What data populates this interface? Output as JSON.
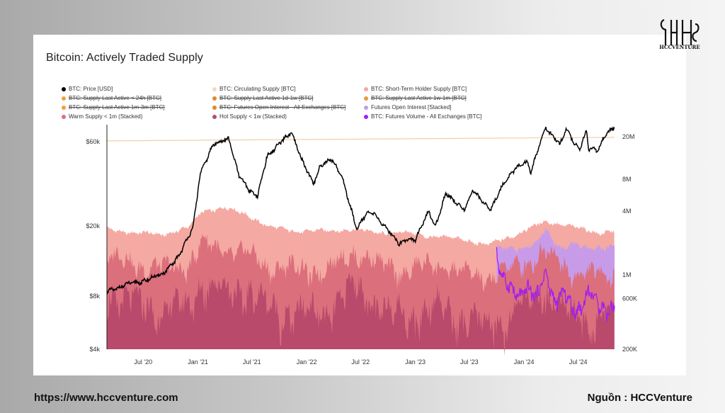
{
  "footer": {
    "url": "https://www.hccventure.com",
    "source": "Nguồn : HCCVenture"
  },
  "logo": {
    "text": "HCCVENTURE"
  },
  "colors": {
    "price": "#000000",
    "circulating": "#f7d9b8",
    "short_term": "#f4a9a2",
    "warm": "#dc6f7c",
    "hot": "#b94a6c",
    "futures_oi": "#c79be8",
    "futures_volume": "#a020f0",
    "struck_dot": "#f0a040"
  },
  "chart_data": {
    "type": "area",
    "title": "Bitcoin: Actively Traded Supply",
    "legend": [
      {
        "label": "BTC: Price [USD]",
        "color": "#000000",
        "struck": false
      },
      {
        "label": "BTC: Circulating Supply [BTC]",
        "color": "#f7d9b8",
        "struck": false
      },
      {
        "label": "BTC: Short-Term Holder Supply [BTC]",
        "color": "#f4a9a2",
        "struck": false
      },
      {
        "label": "BTC: Supply Last Active < 24h [BTC]",
        "color": "#f0a040",
        "struck": true
      },
      {
        "label": "BTC: Supply Last Active 1d-1w [BTC]",
        "color": "#e08a2a",
        "struck": true
      },
      {
        "label": "BTC: Supply Last Active 1w-1m [BTC]",
        "color": "#e69a3c",
        "struck": true
      },
      {
        "label": "BTC: Supply Last Active 1m-3m [BTC]",
        "color": "#f0a040",
        "struck": true
      },
      {
        "label": "BTC: Futures Open Interest - All Exchanges [BTC]",
        "color": "#e08a2a",
        "struck": true
      },
      {
        "label": "Futures Open Interest [Stacked]",
        "color": "#c79be8",
        "struck": false
      },
      {
        "label": "Warm Supply < 1m (Stacked)",
        "color": "#dc6f7c",
        "struck": false
      },
      {
        "label": "Hot Supply < 1w (Stacked)",
        "color": "#b94a6c",
        "struck": false
      },
      {
        "label": "BTC: Futures Volume - All Exchanges [BTC]",
        "color": "#a020f0",
        "struck": false
      }
    ],
    "x_ticks": [
      "Jul '20",
      "Jan '21",
      "Jul '21",
      "Jan '22",
      "Jul '22",
      "Jan '23",
      "Jul '23",
      "Jan '24",
      "Jul '24"
    ],
    "x_range": [
      "2020-03-01",
      "2024-10-31"
    ],
    "y_left": {
      "scale": "log",
      "ticks": [
        "$4k",
        "$8k",
        "$20k",
        "$60k"
      ],
      "tick_values": [
        4000,
        8000,
        20000,
        60000
      ],
      "range": [
        4000,
        75000
      ]
    },
    "y_right": {
      "scale": "log",
      "ticks": [
        "200K",
        "600K",
        "1M",
        "4M",
        "8M",
        "20M"
      ],
      "tick_values": [
        200000,
        600000,
        1000000,
        4000000,
        8000000,
        20000000
      ],
      "range": [
        200000,
        26000000
      ]
    },
    "series": [
      {
        "name": "BTC: Price [USD]",
        "axis": "left",
        "x": [
          "2020-03-01",
          "2020-06-01",
          "2020-09-01",
          "2020-11-01",
          "2020-12-15",
          "2021-01-08",
          "2021-02-21",
          "2021-04-14",
          "2021-05-19",
          "2021-06-22",
          "2021-07-20",
          "2021-08-20",
          "2021-09-07",
          "2021-10-20",
          "2021-11-10",
          "2021-12-15",
          "2022-01-24",
          "2022-02-15",
          "2022-03-28",
          "2022-05-01",
          "2022-06-18",
          "2022-07-20",
          "2022-08-15",
          "2022-09-15",
          "2022-11-09",
          "2022-12-01",
          "2023-01-01",
          "2023-02-15",
          "2023-03-10",
          "2023-04-14",
          "2023-06-15",
          "2023-07-13",
          "2023-09-11",
          "2023-10-25",
          "2023-12-08",
          "2024-01-11",
          "2024-01-23",
          "2024-02-28",
          "2024-03-14",
          "2024-05-01",
          "2024-05-21",
          "2024-07-05",
          "2024-07-29",
          "2024-08-05",
          "2024-09-06",
          "2024-09-27",
          "2024-10-31"
        ],
        "values": [
          8600,
          9500,
          10500,
          13800,
          19400,
          40000,
          57000,
          63500,
          38000,
          31700,
          30000,
          49000,
          52000,
          64000,
          68000,
          47000,
          35000,
          44000,
          47000,
          38000,
          19000,
          23500,
          24000,
          20000,
          16000,
          17000,
          16500,
          24500,
          20000,
          30400,
          25000,
          31400,
          25000,
          34500,
          44000,
          46000,
          39500,
          62000,
          73000,
          57000,
          71000,
          54000,
          69000,
          54000,
          54000,
          66000,
          72000
        ]
      },
      {
        "name": "BTC: Circulating Supply [BTC]",
        "axis": "right",
        "x": [
          "2020-03-01",
          "2024-10-31"
        ],
        "values": [
          18300000,
          19770000
        ]
      },
      {
        "name": "BTC: Short-Term Holder Supply [BTC]",
        "axis": "right",
        "x": [
          "2020-03-01",
          "2020-06-01",
          "2020-09-01",
          "2020-12-01",
          "2021-01-15",
          "2021-04-01",
          "2021-06-15",
          "2021-09-01",
          "2021-12-01",
          "2022-03-01",
          "2022-06-01",
          "2022-09-01",
          "2022-12-01",
          "2023-03-01",
          "2023-06-01",
          "2023-09-01",
          "2023-12-01",
          "2024-03-15",
          "2024-06-01",
          "2024-09-01",
          "2024-10-31"
        ],
        "values": [
          2700000,
          2500000,
          2400000,
          2800000,
          4000000,
          4300000,
          3700000,
          2800000,
          2600000,
          2600000,
          2700000,
          2500000,
          2500000,
          2300000,
          2200000,
          1900000,
          2400000,
          3200000,
          2900000,
          2500000,
          2600000
        ]
      },
      {
        "name": "Warm Supply < 1m (Stacked)",
        "axis": "right",
        "x": [
          "2020-03-01",
          "2020-06-01",
          "2020-09-01",
          "2020-12-01",
          "2021-01-15",
          "2021-04-01",
          "2021-06-15",
          "2021-09-01",
          "2021-12-01",
          "2022-03-01",
          "2022-06-15",
          "2022-09-01",
          "2022-12-01",
          "2023-03-15",
          "2023-06-01",
          "2023-09-01",
          "2023-12-01",
          "2024-03-15",
          "2024-06-01",
          "2024-09-01",
          "2024-10-31"
        ],
        "values": [
          1500000,
          1300000,
          1150000,
          1250000,
          2000000,
          1700000,
          1600000,
          1200000,
          1150000,
          1100000,
          1700000,
          1250000,
          1100000,
          1300000,
          1050000,
          950000,
          1200000,
          1700000,
          1100000,
          1000000,
          1050000
        ]
      },
      {
        "name": "Hot Supply < 1w (Stacked)",
        "axis": "right",
        "x": [
          "2020-03-01",
          "2020-06-01",
          "2020-09-01",
          "2020-12-01",
          "2021-01-15",
          "2021-04-01",
          "2021-06-15",
          "2021-09-01",
          "2021-12-01",
          "2022-03-01",
          "2022-06-15",
          "2022-09-01",
          "2022-12-01",
          "2023-03-15",
          "2023-06-01",
          "2023-09-01",
          "2023-12-01",
          "2024-03-15",
          "2024-06-01",
          "2024-09-01",
          "2024-10-31"
        ],
        "values": [
          700000,
          550000,
          480000,
          520000,
          900000,
          700000,
          750000,
          480000,
          450000,
          440000,
          800000,
          500000,
          420000,
          520000,
          400000,
          330000,
          450000,
          750000,
          420000,
          380000,
          400000
        ]
      },
      {
        "name": "Futures Open Interest [Stacked]",
        "axis": "right",
        "x": [
          "2023-10-01",
          "2023-12-01",
          "2024-02-01",
          "2024-03-15",
          "2024-05-01",
          "2024-06-01",
          "2024-08-01",
          "2024-10-31"
        ],
        "values": [
          1750000,
          1800000,
          1900000,
          2600000,
          1800000,
          2000000,
          1750000,
          1900000
        ]
      },
      {
        "name": "BTC: Futures Volume - All Exchanges [BTC]",
        "axis": "right",
        "x": [
          "2023-10-01",
          "2023-10-20",
          "2023-11-10",
          "2023-12-10",
          "2024-01-11",
          "2024-02-10",
          "2024-03-15",
          "2024-04-15",
          "2024-05-15",
          "2024-06-15",
          "2024-07-15",
          "2024-08-05",
          "2024-09-01",
          "2024-10-01",
          "2024-10-31"
        ],
        "values": [
          1700000,
          900000,
          750000,
          650000,
          800000,
          560000,
          1100000,
          560000,
          650000,
          460000,
          560000,
          700000,
          520000,
          500000,
          520000
        ]
      }
    ]
  }
}
